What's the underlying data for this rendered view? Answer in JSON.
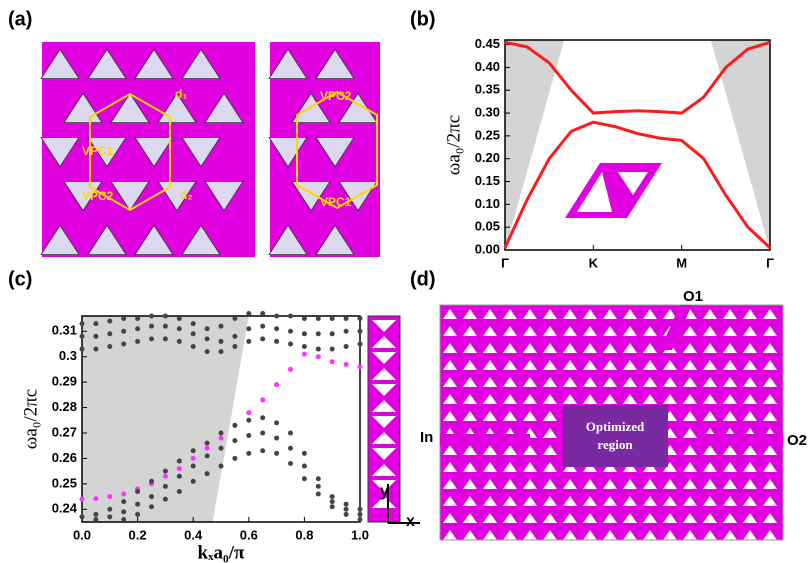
{
  "panels": [
    "(a)",
    "(b)",
    "(c)",
    "(d)"
  ],
  "diagram": {
    "a": {
      "labels": [
        "VPC1",
        "d₁",
        "VPC2",
        "d₂",
        "VPC2",
        "VPC1"
      ]
    },
    "c": {
      "axes": [
        "y",
        "x"
      ]
    },
    "d": {
      "ports": [
        "In",
        "O1",
        "O2"
      ],
      "region": "Optimized region"
    }
  },
  "chart_data": [
    {
      "type": "line",
      "y_label": "ωa₀/2πc",
      "x": [
        0,
        0.25,
        0.5,
        0.75,
        1,
        1.25,
        1.5,
        1.75,
        2,
        2.25,
        2.5,
        2.75,
        3
      ],
      "xlim": [
        0,
        3
      ],
      "xticks": [
        {
          "value": 0,
          "label": "Γ"
        },
        {
          "value": 1,
          "label": "K"
        },
        {
          "value": 2,
          "label": "M"
        },
        {
          "value": 3,
          "label": "Γ"
        }
      ],
      "ylim": [
        0,
        0.46
      ],
      "yticks": [
        {
          "value": 0,
          "label": "0.00"
        },
        {
          "value": 0.05,
          "label": "0.05"
        },
        {
          "value": 0.1,
          "label": "0.10"
        },
        {
          "value": 0.15,
          "label": "0.15"
        },
        {
          "value": 0.2,
          "label": "0.20"
        },
        {
          "value": 0.25,
          "label": "0.25"
        },
        {
          "value": 0.3,
          "label": "0.30"
        },
        {
          "value": 0.35,
          "label": "0.35"
        },
        {
          "value": 0.4,
          "label": "0.40"
        },
        {
          "value": 0.45,
          "label": "0.45"
        }
      ],
      "series": [
        {
          "color": "#ff1a1a",
          "values": [
            0.005,
            0.11,
            0.2,
            0.26,
            0.28,
            0.27,
            0.255,
            0.245,
            0.24,
            0.2,
            0.12,
            0.05,
            0.005
          ]
        },
        {
          "color": "#ff1a1a",
          "values": [
            0.455,
            0.445,
            0.41,
            0.35,
            0.3,
            0.303,
            0.305,
            0.303,
            0.3,
            0.335,
            0.4,
            0.44,
            0.455
          ]
        }
      ],
      "shade": [
        {
          "x": [
            0,
            0.67,
            0
          ],
          "values": [
            0,
            0.46,
            0.46
          ]
        },
        {
          "x": [
            3,
            2.33,
            3
          ],
          "values": [
            0,
            0.46,
            0.46
          ]
        }
      ],
      "shade_color": "#d4d4d4"
    },
    {
      "type": "scatter",
      "y_label": "ωa₀/2πc",
      "x_label": "kₓa₀/π",
      "x": [
        0,
        0.05,
        0.1,
        0.15,
        0.2,
        0.25,
        0.3,
        0.35,
        0.4,
        0.45,
        0.5,
        0.55,
        0.6,
        0.65,
        0.7,
        0.75,
        0.8,
        0.85,
        0.9,
        0.95,
        1
      ],
      "xlim": [
        0,
        1
      ],
      "xticks": [
        {
          "value": 0,
          "label": "0.0"
        },
        {
          "value": 0.2,
          "label": "0.2"
        },
        {
          "value": 0.4,
          "label": "0.4"
        },
        {
          "value": 0.6,
          "label": "0.6"
        },
        {
          "value": 0.8,
          "label": "0.8"
        },
        {
          "value": 1,
          "label": "1.0"
        }
      ],
      "ylim": [
        0.235,
        0.316
      ],
      "yticks": [
        0.24,
        0.25,
        0.26,
        0.27,
        0.28,
        0.29,
        0.3,
        0.31
      ],
      "series": [
        {
          "color": "#ff33ff",
          "values": [
            0.244,
            0.2442,
            0.245,
            0.246,
            0.248,
            0.25,
            0.253,
            0.256,
            0.26,
            0.264,
            0.268,
            0.273,
            0.278,
            0.283,
            0.289,
            0.295,
            0.301,
            0.3,
            0.298,
            0.297,
            0.296
          ]
        },
        {
          "color": "#444444",
          "values": [
            0.313,
            0.313,
            0.314,
            0.315,
            0.315,
            0.316,
            0.316,
            0.315,
            0.313,
            0.311,
            0.312,
            0.315,
            0.317,
            0.317,
            0.316,
            0.316,
            0.315,
            0.315,
            0.315,
            0.315,
            0.315
          ]
        },
        {
          "color": "#444444",
          "values": [
            0.308,
            0.308,
            0.309,
            0.31,
            0.311,
            0.312,
            0.312,
            0.311,
            0.309,
            0.307,
            0.306,
            0.308,
            0.311,
            0.312,
            0.311,
            0.31,
            0.309,
            0.309,
            0.309,
            0.31,
            0.31
          ]
        },
        {
          "color": "#444444",
          "values": [
            0.303,
            0.303,
            0.304,
            0.305,
            0.306,
            0.307,
            0.307,
            0.306,
            0.304,
            0.302,
            0.302,
            0.304,
            0.306,
            0.307,
            0.306,
            0.305,
            0.304,
            0.303,
            0.303,
            0.304,
            0.305
          ]
        },
        {
          "color": "#444444",
          "values": [
            0.237,
            0.238,
            0.24,
            0.243,
            0.247,
            0.251,
            0.255,
            0.259,
            0.263,
            0.266,
            0.27,
            0.273,
            0.275,
            0.276,
            0.274,
            0.27,
            0.262,
            0.252,
            0.245,
            0.242,
            0.24
          ]
        },
        {
          "color": "#444444",
          "values": [
            null,
            0.236,
            0.237,
            0.239,
            0.242,
            0.245,
            0.249,
            0.253,
            0.257,
            0.261,
            0.264,
            0.267,
            0.269,
            0.27,
            0.268,
            0.264,
            0.257,
            0.249,
            0.243,
            0.24,
            0.238
          ]
        },
        {
          "color": "#444444",
          "values": [
            null,
            null,
            null,
            0.236,
            0.238,
            0.241,
            0.244,
            0.247,
            0.251,
            0.254,
            0.257,
            0.26,
            0.262,
            0.263,
            0.262,
            0.258,
            0.252,
            0.246,
            0.241,
            0.238,
            0.236
          ]
        }
      ],
      "shade": [
        {
          "x": [
            0,
            0.47,
            0.6,
            0
          ],
          "values": [
            0.235,
            0.235,
            0.316,
            0.316
          ]
        }
      ],
      "shade_color": "#d4d4d4"
    }
  ]
}
